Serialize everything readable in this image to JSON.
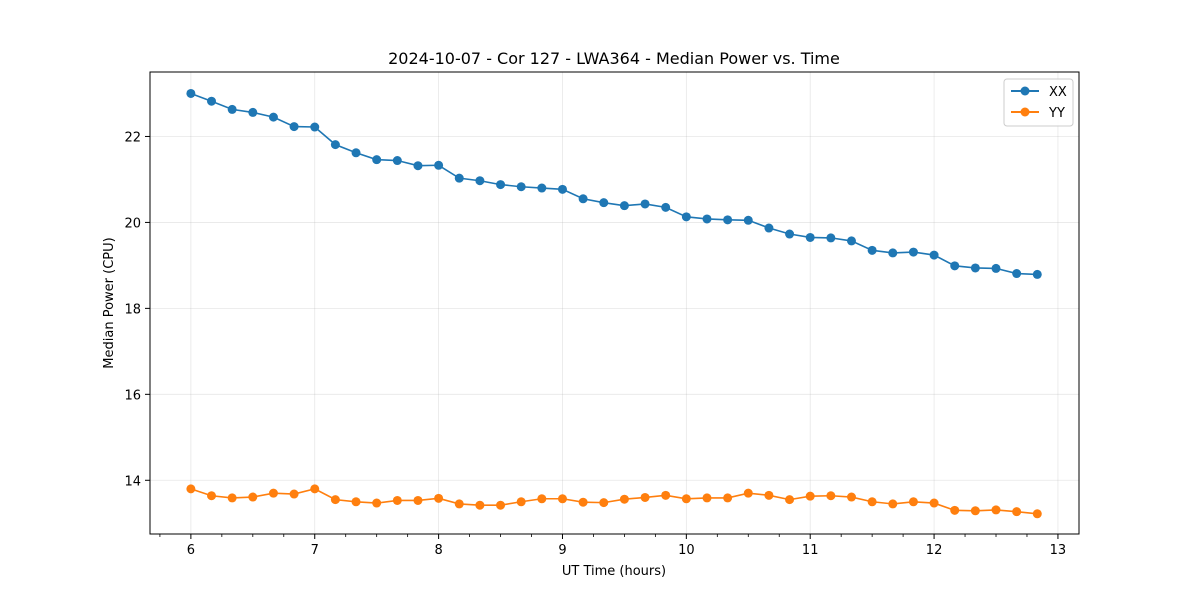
{
  "chart_data": {
    "type": "line",
    "title": "2024-10-07 - Cor 127 - LWA364 - Median Power vs. Time",
    "xlabel": "UT Time (hours)",
    "ylabel": "Median Power (CPU)",
    "xlim": [
      5.67,
      13.17
    ],
    "ylim": [
      12.75,
      23.5
    ],
    "xticks": [
      6,
      7,
      8,
      9,
      10,
      11,
      12,
      13
    ],
    "yticks": [
      14,
      16,
      18,
      20,
      22
    ],
    "grid": true,
    "legend_position": "top-right",
    "x": [
      6.0,
      6.1667,
      6.3333,
      6.5,
      6.6667,
      6.8333,
      7.0,
      7.1667,
      7.3333,
      7.5,
      7.6667,
      7.8333,
      8.0,
      8.1667,
      8.3333,
      8.5,
      8.6667,
      8.8333,
      9.0,
      9.1667,
      9.3333,
      9.5,
      9.6667,
      9.8333,
      10.0,
      10.1667,
      10.3333,
      10.5,
      10.6667,
      10.8333,
      11.0,
      11.1667,
      11.3333,
      11.5,
      11.6667,
      11.8333,
      12.0,
      12.1667,
      12.3333,
      12.5,
      12.6667,
      12.8333
    ],
    "series": [
      {
        "name": "XX",
        "color": "#1f77b4",
        "values": [
          23.0,
          22.82,
          22.63,
          22.56,
          22.45,
          22.23,
          22.22,
          21.81,
          21.62,
          21.46,
          21.44,
          21.32,
          21.33,
          21.03,
          20.97,
          20.88,
          20.83,
          20.8,
          20.77,
          20.55,
          20.46,
          20.39,
          20.43,
          20.35,
          20.13,
          20.08,
          20.06,
          20.05,
          19.87,
          19.73,
          19.65,
          19.64,
          19.57,
          19.35,
          19.29,
          19.31,
          19.24,
          18.99,
          18.94,
          18.93,
          18.81,
          18.79
        ]
      },
      {
        "name": "YY",
        "color": "#ff7f0e",
        "values": [
          13.8,
          13.64,
          13.59,
          13.61,
          13.7,
          13.68,
          13.8,
          13.55,
          13.5,
          13.47,
          13.53,
          13.53,
          13.58,
          13.45,
          13.42,
          13.42,
          13.5,
          13.57,
          13.57,
          13.49,
          13.48,
          13.56,
          13.6,
          13.65,
          13.57,
          13.59,
          13.59,
          13.7,
          13.65,
          13.55,
          13.63,
          13.64,
          13.61,
          13.5,
          13.45,
          13.5,
          13.47,
          13.3,
          13.29,
          13.31,
          13.27,
          13.22
        ]
      }
    ]
  }
}
